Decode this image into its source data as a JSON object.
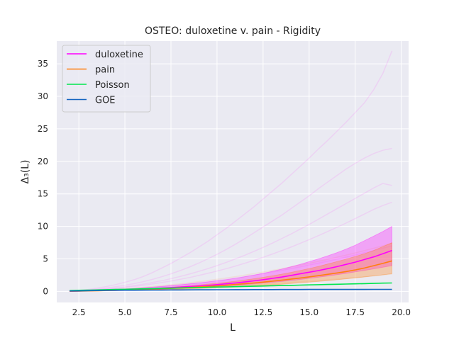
{
  "chart_data": {
    "type": "line",
    "title": "OSTEO: duloxetine v. pain - Rigidity",
    "xlabel": "L",
    "ylabel": "Δ₃(L)",
    "xlim": [
      1.3,
      20.4
    ],
    "ylim": [
      -1.7,
      38.5
    ],
    "xticks": [
      2.5,
      5.0,
      7.5,
      10.0,
      12.5,
      15.0,
      17.5,
      20.0
    ],
    "xtick_labels": [
      "2.5",
      "5.0",
      "7.5",
      "10.0",
      "12.5",
      "15.0",
      "17.5",
      "20.0"
    ],
    "yticks": [
      0,
      5,
      10,
      15,
      20,
      25,
      30,
      35
    ],
    "ytick_labels": [
      "0",
      "5",
      "10",
      "15",
      "20",
      "25",
      "30",
      "35"
    ],
    "grid": true,
    "legend_position": "upper-left",
    "x": [
      2.0,
      2.5,
      3.0,
      3.5,
      4.0,
      4.5,
      5.0,
      5.5,
      6.0,
      6.5,
      7.0,
      7.5,
      8.0,
      8.5,
      9.0,
      9.5,
      10.0,
      10.5,
      11.0,
      11.5,
      12.0,
      12.5,
      13.0,
      13.5,
      14.0,
      14.5,
      15.0,
      15.5,
      16.0,
      16.5,
      17.0,
      17.5,
      18.0,
      18.5,
      19.0,
      19.5
    ],
    "series": [
      {
        "name": "duloxetine",
        "color": "#ff00ff",
        "values": [
          0.03,
          0.06,
          0.1,
          0.14,
          0.18,
          0.22,
          0.27,
          0.32,
          0.38,
          0.44,
          0.51,
          0.58,
          0.66,
          0.74,
          0.83,
          0.93,
          1.04,
          1.16,
          1.3,
          1.45,
          1.62,
          1.8,
          2.0,
          2.2,
          2.45,
          2.7,
          2.95,
          3.2,
          3.5,
          3.8,
          4.15,
          4.5,
          4.9,
          5.3,
          5.8,
          6.3
        ],
        "band_lower": [
          0.02,
          0.04,
          0.07,
          0.1,
          0.13,
          0.16,
          0.2,
          0.24,
          0.28,
          0.32,
          0.37,
          0.42,
          0.48,
          0.54,
          0.6,
          0.67,
          0.75,
          0.84,
          0.93,
          1.03,
          1.14,
          1.26,
          1.39,
          1.52,
          1.67,
          1.83,
          2.0,
          2.18,
          2.36,
          2.56,
          2.77,
          2.99,
          3.22,
          3.46,
          3.71,
          3.97
        ],
        "band_upper": [
          0.05,
          0.09,
          0.14,
          0.19,
          0.25,
          0.31,
          0.38,
          0.46,
          0.55,
          0.65,
          0.76,
          0.88,
          1.01,
          1.15,
          1.3,
          1.46,
          1.63,
          1.81,
          2.02,
          2.25,
          2.5,
          2.78,
          3.09,
          3.42,
          3.78,
          4.16,
          4.57,
          5.0,
          5.46,
          5.95,
          6.5,
          7.1,
          7.8,
          8.5,
          9.2,
          10.0
        ],
        "trials": [
          [
            0.05,
            0.15,
            0.3,
            0.5,
            0.75,
            1.05,
            1.4,
            1.8,
            2.3,
            2.9,
            3.6,
            4.3,
            5.1,
            5.9,
            6.8,
            7.7,
            8.7,
            9.7,
            10.8,
            11.9,
            13.0,
            14.2,
            15.4,
            16.6,
            17.9,
            19.2,
            20.5,
            21.9,
            23.2,
            24.6,
            26.0,
            27.5,
            29.0,
            31.0,
            33.5,
            37.0
          ],
          [
            0.04,
            0.12,
            0.22,
            0.36,
            0.52,
            0.72,
            0.95,
            1.2,
            1.5,
            1.85,
            2.25,
            2.7,
            3.2,
            3.75,
            4.35,
            5.0,
            5.7,
            6.45,
            7.25,
            8.1,
            9.0,
            9.9,
            10.8,
            11.7,
            12.7,
            13.7,
            14.7,
            15.8,
            16.8,
            17.8,
            18.8,
            19.7,
            20.5,
            21.2,
            21.7,
            22.0
          ],
          [
            0.03,
            0.09,
            0.17,
            0.27,
            0.39,
            0.53,
            0.7,
            0.9,
            1.12,
            1.37,
            1.65,
            1.96,
            2.3,
            2.67,
            3.07,
            3.5,
            3.97,
            4.47,
            5.0,
            5.56,
            6.15,
            6.77,
            7.42,
            8.1,
            8.8,
            9.55,
            10.3,
            11.1,
            11.9,
            12.7,
            13.5,
            14.3,
            15.1,
            15.9,
            16.6,
            16.3
          ],
          [
            0.03,
            0.08,
            0.15,
            0.24,
            0.34,
            0.46,
            0.6,
            0.76,
            0.94,
            1.14,
            1.36,
            1.6,
            1.86,
            2.14,
            2.45,
            2.78,
            3.13,
            3.5,
            3.9,
            4.32,
            4.77,
            5.24,
            5.74,
            6.26,
            6.8,
            7.37,
            7.96,
            8.57,
            9.2,
            9.85,
            10.5,
            11.2,
            11.9,
            12.6,
            13.2,
            13.7
          ],
          [
            0.02,
            0.05,
            0.09,
            0.14,
            0.2,
            0.27,
            0.35,
            0.44,
            0.54,
            0.65,
            0.77,
            0.9,
            1.04,
            1.19,
            1.35,
            1.52,
            1.7,
            1.89,
            2.09,
            2.3,
            2.52,
            2.75,
            2.99,
            3.24,
            3.5,
            3.77,
            4.05,
            4.34,
            4.64,
            4.95,
            5.27,
            5.6,
            5.94,
            6.29,
            6.65,
            7.0
          ]
        ]
      },
      {
        "name": "pain",
        "color": "#ff7f0e",
        "values": [
          0.03,
          0.05,
          0.08,
          0.11,
          0.14,
          0.17,
          0.21,
          0.25,
          0.3,
          0.35,
          0.41,
          0.47,
          0.54,
          0.61,
          0.69,
          0.77,
          0.86,
          0.96,
          1.07,
          1.18,
          1.3,
          1.43,
          1.57,
          1.72,
          1.88,
          2.05,
          2.23,
          2.42,
          2.62,
          2.83,
          3.05,
          3.3,
          3.6,
          3.95,
          4.3,
          4.7
        ],
        "band_lower": [
          0.02,
          0.03,
          0.05,
          0.07,
          0.09,
          0.11,
          0.14,
          0.17,
          0.2,
          0.23,
          0.27,
          0.31,
          0.35,
          0.4,
          0.45,
          0.5,
          0.56,
          0.62,
          0.69,
          0.76,
          0.84,
          0.92,
          1.01,
          1.1,
          1.2,
          1.31,
          1.42,
          1.54,
          1.66,
          1.79,
          1.93,
          2.07,
          2.22,
          2.38,
          2.55,
          2.72
        ],
        "band_upper": [
          0.04,
          0.07,
          0.11,
          0.15,
          0.19,
          0.24,
          0.29,
          0.35,
          0.41,
          0.48,
          0.56,
          0.65,
          0.75,
          0.86,
          0.98,
          1.11,
          1.25,
          1.4,
          1.57,
          1.75,
          1.95,
          2.17,
          2.4,
          2.65,
          2.92,
          3.21,
          3.52,
          3.85,
          4.2,
          4.57,
          4.96,
          5.37,
          5.8,
          6.3,
          6.9,
          7.5
        ],
        "trials": [
          [
            0.03,
            0.07,
            0.12,
            0.18,
            0.25,
            0.33,
            0.42,
            0.52,
            0.63,
            0.75,
            0.88,
            1.02,
            1.17,
            1.33,
            1.5,
            1.68,
            1.87,
            2.07,
            2.28,
            2.5,
            2.73,
            2.97,
            3.22,
            3.48,
            3.75,
            4.03,
            4.32,
            4.62,
            4.93,
            5.25,
            5.58,
            5.92,
            6.27,
            6.63,
            7.0,
            7.4
          ],
          [
            0.02,
            0.04,
            0.06,
            0.09,
            0.12,
            0.15,
            0.18,
            0.22,
            0.26,
            0.3,
            0.35,
            0.4,
            0.45,
            0.51,
            0.57,
            0.63,
            0.7,
            0.77,
            0.84,
            0.92,
            1.0,
            1.08,
            1.17,
            1.26,
            1.36,
            1.46,
            1.56,
            1.67,
            1.78,
            1.89,
            2.01,
            2.13,
            2.26,
            2.39,
            2.52,
            2.66
          ]
        ]
      },
      {
        "name": "Poisson",
        "color": "#00e64d",
        "values": [
          0.13,
          0.17,
          0.2,
          0.23,
          0.27,
          0.3,
          0.33,
          0.37,
          0.4,
          0.43,
          0.47,
          0.5,
          0.53,
          0.57,
          0.6,
          0.63,
          0.67,
          0.7,
          0.73,
          0.77,
          0.8,
          0.83,
          0.87,
          0.9,
          0.93,
          0.97,
          1.0,
          1.03,
          1.07,
          1.1,
          1.13,
          1.17,
          1.2,
          1.23,
          1.27,
          1.3
        ]
      },
      {
        "name": "GOE",
        "color": "#1565c0",
        "values": [
          0.06,
          0.08,
          0.11,
          0.13,
          0.15,
          0.17,
          0.18,
          0.19,
          0.2,
          0.21,
          0.22,
          0.23,
          0.23,
          0.24,
          0.25,
          0.25,
          0.26,
          0.26,
          0.27,
          0.27,
          0.28,
          0.28,
          0.28,
          0.29,
          0.29,
          0.29,
          0.3,
          0.3,
          0.3,
          0.31,
          0.31,
          0.31,
          0.31,
          0.32,
          0.32,
          0.32
        ]
      }
    ]
  }
}
